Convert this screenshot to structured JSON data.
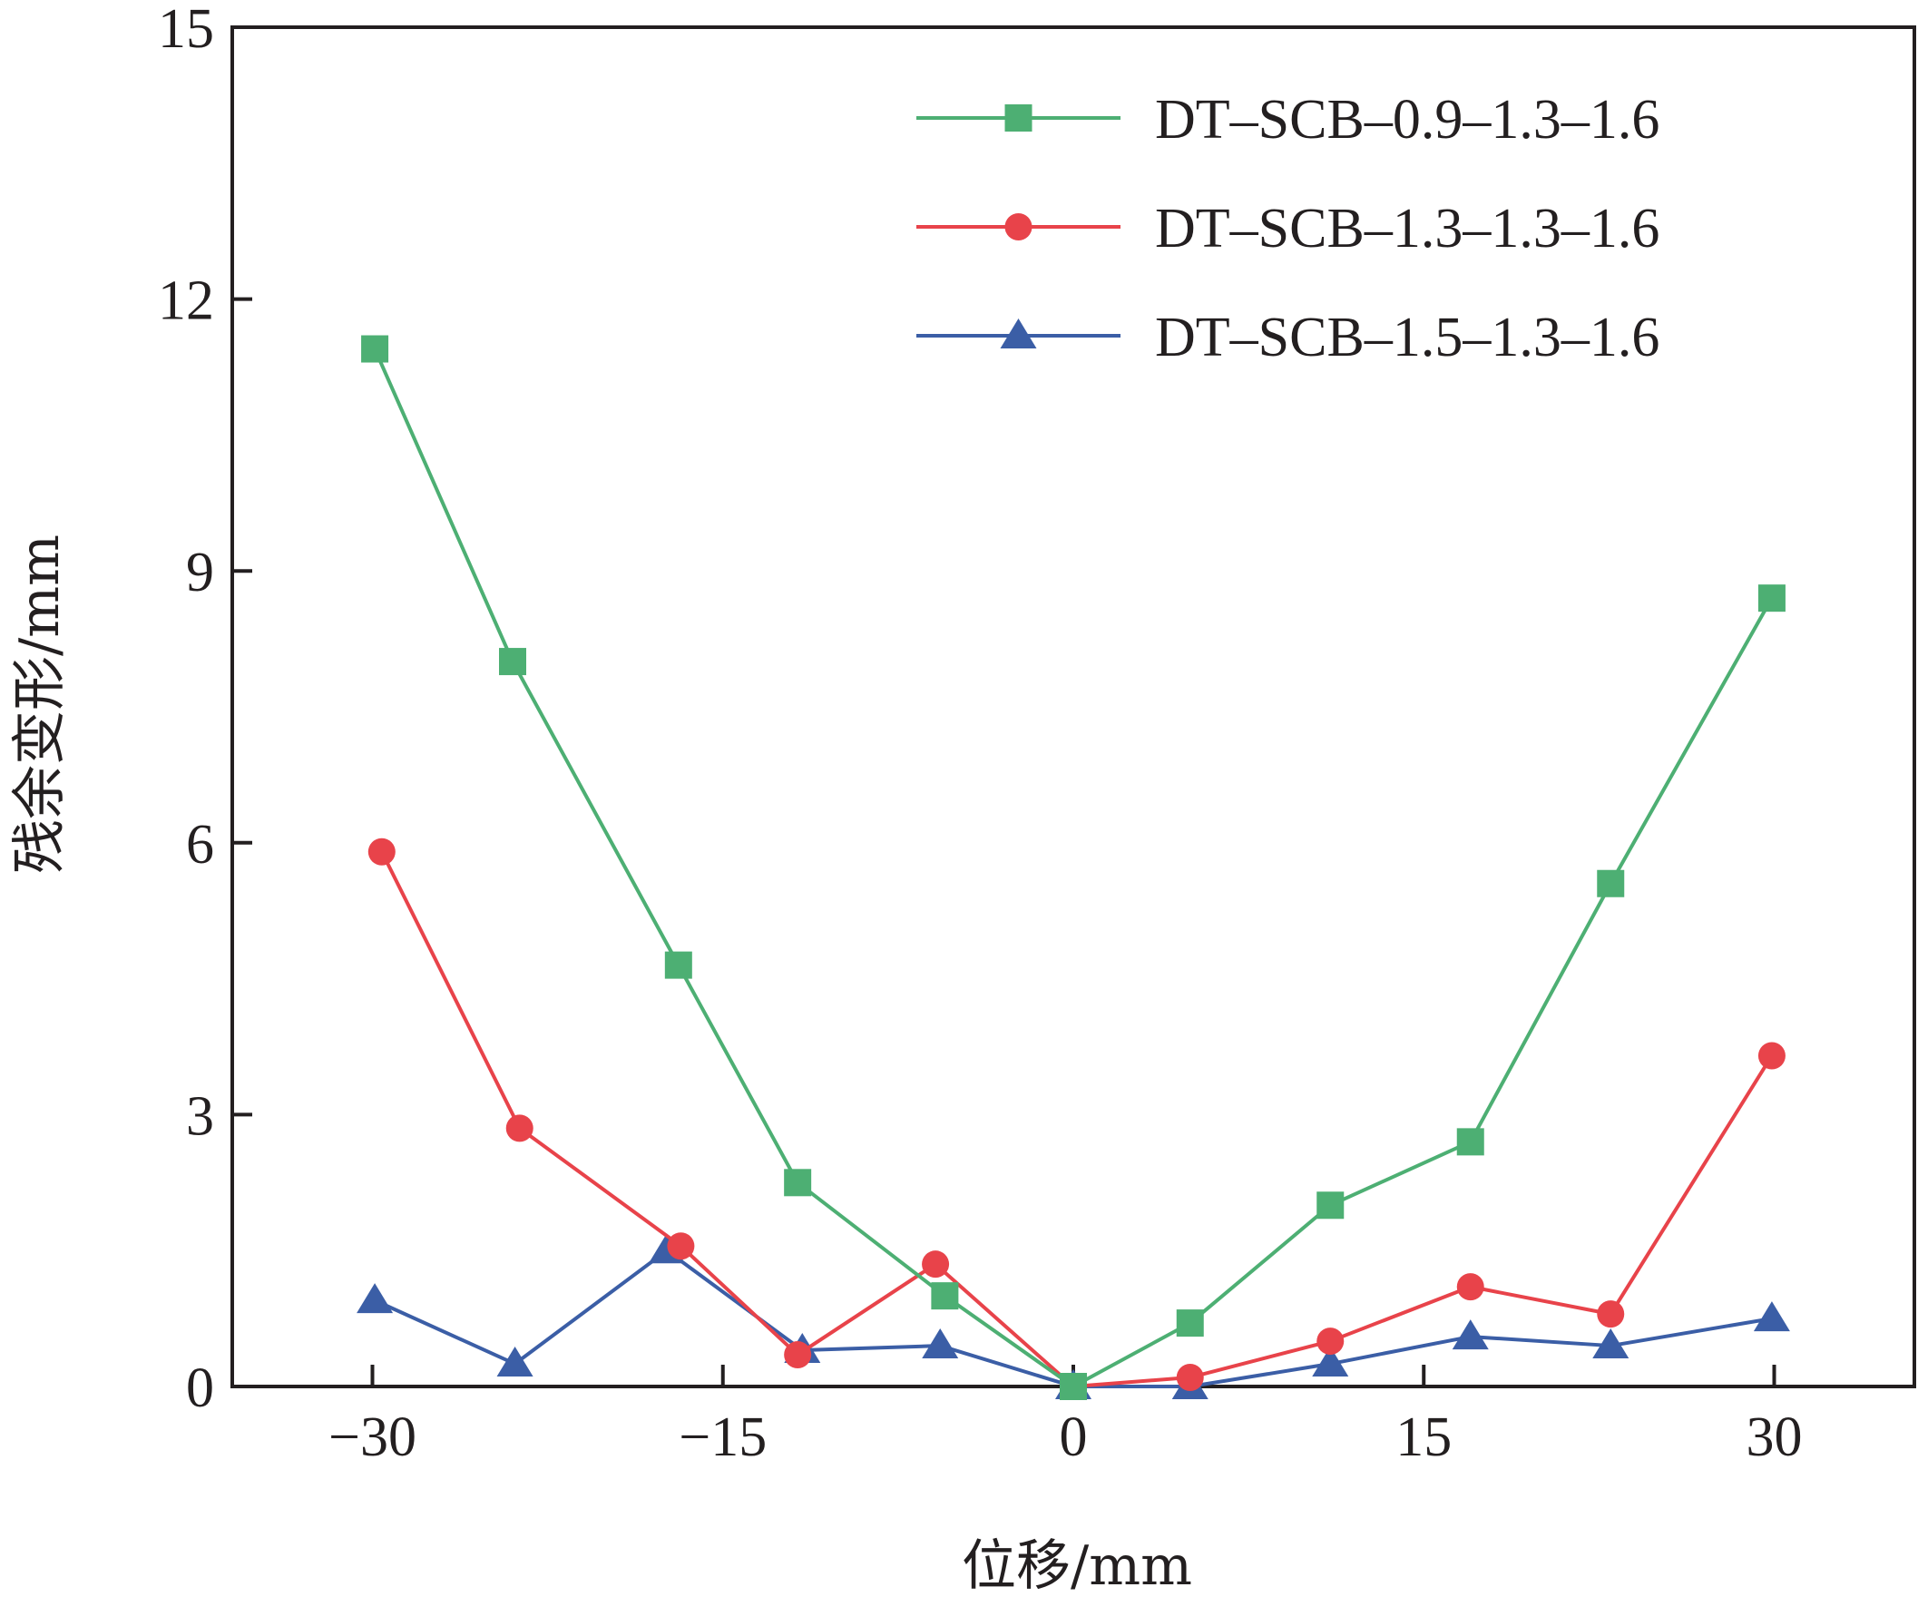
{
  "chart_data": {
    "type": "line",
    "title": "",
    "xlabel": "位移/mm",
    "ylabel": "残余变形/mm",
    "xlim": [
      -36,
      36
    ],
    "ylim": [
      0,
      15
    ],
    "xticks": [
      -30,
      -15,
      0,
      15,
      30
    ],
    "yticks": [
      0,
      3,
      6,
      9,
      12,
      15
    ],
    "xtick_labels": [
      "−30",
      "−15",
      "0",
      "15",
      "30"
    ],
    "ytick_labels": [
      "0",
      "3",
      "6",
      "9",
      "12",
      "15"
    ],
    "grid": false,
    "legend_position": "top-right",
    "series": [
      {
        "name": "DT–SCB–0.9–1.3–1.6",
        "color": "#4daf73",
        "marker": "square",
        "x": [
          -29.9,
          -24,
          -16.9,
          -11.8,
          -5.5,
          0,
          5,
          11,
          17,
          23,
          29.9
        ],
        "y": [
          11.45,
          8.0,
          4.65,
          2.25,
          1.0,
          0.0,
          0.7,
          2.0,
          2.7,
          5.55,
          8.7
        ]
      },
      {
        "name": "DT–SCB–1.3–1.3–1.6",
        "color": "#e8434a",
        "marker": "circle",
        "x": [
          -29.6,
          -23.7,
          -16.8,
          -11.8,
          -5.9,
          0,
          5,
          11,
          17,
          23,
          29.9
        ],
        "y": [
          5.9,
          2.85,
          1.55,
          0.35,
          1.35,
          0.0,
          0.1,
          0.5,
          1.1,
          0.8,
          3.65
        ]
      },
      {
        "name": "DT–SCB–1.5–1.3–1.6",
        "color": "#3b5ea6",
        "marker": "triangle",
        "x": [
          -29.9,
          -23.9,
          -17.4,
          -11.6,
          -5.7,
          0,
          5,
          11,
          17,
          23,
          29.9
        ],
        "y": [
          0.95,
          0.25,
          1.5,
          0.4,
          0.45,
          0.0,
          0.0,
          0.25,
          0.55,
          0.45,
          0.75
        ]
      }
    ]
  }
}
